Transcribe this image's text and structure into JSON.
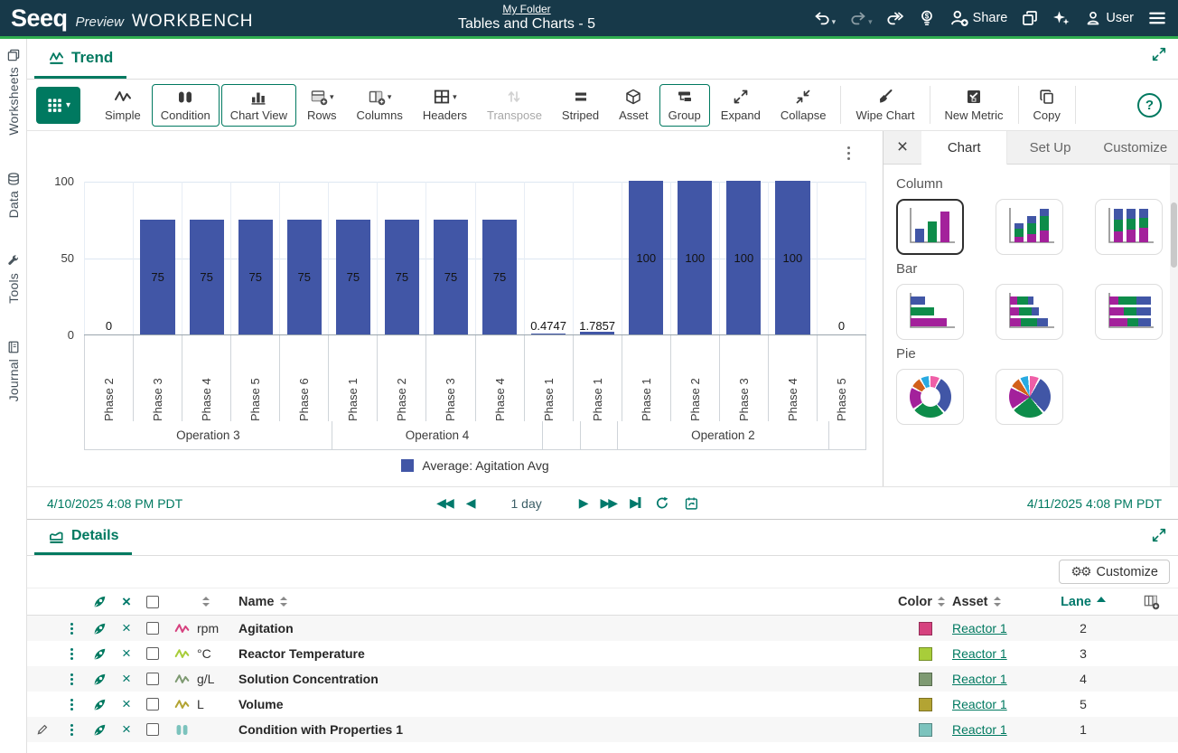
{
  "topbar": {
    "brand": "Seeq",
    "brand_mode": "Preview",
    "brand_product": "WORKBENCH",
    "folder_link": "My Folder",
    "document_title": "Tables and Charts - 5",
    "share_label": "Share",
    "user_label": "User"
  },
  "sidebar": {
    "items": [
      {
        "label": "Worksheets",
        "icon": "worksheets-icon"
      },
      {
        "label": "Data",
        "icon": "data-icon"
      },
      {
        "label": "Tools",
        "icon": "tools-icon"
      },
      {
        "label": "Journal",
        "icon": "journal-icon"
      }
    ]
  },
  "trend": {
    "tab_label": "Trend"
  },
  "toolbar": {
    "help_label": "?",
    "buttons": [
      {
        "label": "Simple",
        "icon": "signal-icon",
        "state": "normal"
      },
      {
        "label": "Condition",
        "icon": "condition-icon",
        "state": "outlined"
      },
      {
        "label": "Chart View",
        "icon": "bar-chart-icon",
        "state": "outlined"
      },
      {
        "label": "Rows",
        "icon": "rows-icon",
        "state": "normal",
        "caret": true
      },
      {
        "label": "Columns",
        "icon": "columns-icon",
        "state": "normal",
        "caret": true
      },
      {
        "label": "Headers",
        "icon": "headers-icon",
        "state": "normal",
        "caret": true
      },
      {
        "label": "Transpose",
        "icon": "transpose-icon",
        "state": "disabled"
      },
      {
        "label": "Striped",
        "icon": "striped-icon",
        "state": "normal"
      },
      {
        "label": "Asset",
        "icon": "asset-icon",
        "state": "normal"
      },
      {
        "label": "Group",
        "icon": "group-icon",
        "state": "outlined"
      },
      {
        "label": "Expand",
        "icon": "expand-icon",
        "state": "normal"
      },
      {
        "label": "Collapse",
        "icon": "collapse-icon",
        "state": "normal"
      },
      {
        "label": "Wipe Chart",
        "icon": "wipe-chart-icon",
        "state": "normal",
        "divider_before": true
      },
      {
        "label": "New Metric",
        "icon": "new-metric-icon",
        "state": "normal",
        "divider_before": true
      },
      {
        "label": "Copy",
        "icon": "copy-icon",
        "state": "normal",
        "divider_before": true,
        "divider_after": true
      }
    ]
  },
  "chart_data": {
    "type": "bar",
    "orientation": "vertical",
    "title": "",
    "ylabel": "",
    "ylim": [
      0,
      100
    ],
    "yticks": [
      100,
      50,
      0
    ],
    "grid": true,
    "bar_color": "#4156a6",
    "legend_position": "bottom",
    "legend_label": "Average: Agitation Avg",
    "groups": [
      {
        "operation": "Operation 3",
        "categories": [
          "Phase 2",
          "Phase 3",
          "Phase 4",
          "Phase 5",
          "Phase 6"
        ],
        "values": [
          0,
          75,
          75,
          75,
          75
        ],
        "labels": [
          "0",
          "75",
          "75",
          "75",
          "75"
        ]
      },
      {
        "operation": "Operation 4",
        "categories": [
          "Phase 1",
          "Phase 2",
          "Phase 3",
          "Phase 4"
        ],
        "values": [
          75,
          75,
          75,
          75
        ],
        "labels": [
          "75",
          "75",
          "75",
          "75"
        ]
      },
      {
        "operation": "",
        "categories": [
          "Phase 1"
        ],
        "values": [
          0.4747
        ],
        "labels": [
          "0.4747"
        ]
      },
      {
        "operation": "",
        "categories": [
          "Phase 1"
        ],
        "values": [
          1.7857
        ],
        "labels": [
          "1.7857"
        ]
      },
      {
        "operation": "Operation 2",
        "categories": [
          "Phase 1",
          "Phase 2",
          "Phase 3",
          "Phase 4"
        ],
        "values": [
          100,
          100,
          100,
          100
        ],
        "labels": [
          "100",
          "100",
          "100",
          "100"
        ]
      },
      {
        "operation": "",
        "categories": [
          "Phase 5"
        ],
        "values": [
          0
        ],
        "labels": [
          "0"
        ]
      }
    ]
  },
  "timebar": {
    "start": "4/10/2025 4:08 PM",
    "start_tz": "PDT",
    "duration_label": "1 day",
    "end": "4/11/2025 4:08 PM",
    "end_tz": "PDT"
  },
  "right_panel": {
    "tabs": [
      {
        "label": "Chart",
        "active": true
      },
      {
        "label": "Set Up",
        "active": false
      },
      {
        "label": "Customize",
        "active": false
      }
    ],
    "sections": [
      {
        "label": "Column",
        "thumbs": [
          {
            "type": "column-simple",
            "selected": true
          },
          {
            "type": "column-stacked",
            "selected": false
          },
          {
            "type": "column-stacked-100",
            "selected": false
          }
        ]
      },
      {
        "label": "Bar",
        "thumbs": [
          {
            "type": "bar-simple",
            "selected": false
          },
          {
            "type": "bar-stacked",
            "selected": false
          },
          {
            "type": "bar-stacked-100",
            "selected": false
          }
        ]
      },
      {
        "label": "Pie",
        "thumbs": [
          {
            "type": "pie-donut",
            "selected": false
          },
          {
            "type": "pie-full",
            "selected": false
          }
        ]
      }
    ]
  },
  "details": {
    "tab_label": "Details",
    "customize_label": "Customize",
    "header": {
      "name": "Name",
      "color": "Color",
      "asset": "Asset",
      "lane": "Lane"
    },
    "rows": [
      {
        "type": "signal",
        "unit": "rpm",
        "name": "Agitation",
        "color": "#d6427f",
        "asset": "Reactor 1",
        "lane": "2",
        "editable": false
      },
      {
        "type": "signal",
        "unit": "°C",
        "name": "Reactor Temperature",
        "color": "#a8cd3a",
        "asset": "Reactor 1",
        "lane": "3",
        "editable": false
      },
      {
        "type": "signal",
        "unit": "g/L",
        "name": "Solution Concentration",
        "color": "#7e9a72",
        "asset": "Reactor 1",
        "lane": "4",
        "editable": false
      },
      {
        "type": "signal",
        "unit": "L",
        "name": "Volume",
        "color": "#b3a433",
        "asset": "Reactor 1",
        "lane": "5",
        "editable": false
      },
      {
        "type": "condition",
        "unit": "",
        "name": "Condition with Properties 1",
        "color": "#7cc3bd",
        "asset": "Reactor 1",
        "lane": "1",
        "editable": true
      }
    ]
  },
  "colors": {
    "accent_teal": "#007960",
    "topbar_bg": "#173949",
    "green_line": "#2fad50",
    "bar_blue": "#4156a6",
    "palette": {
      "blue": "#4156a6",
      "green": "#0e8c4a",
      "magenta": "#a3219b",
      "orange": "#d2601a",
      "cyan": "#29aae1",
      "pink": "#ef5fa7"
    }
  }
}
